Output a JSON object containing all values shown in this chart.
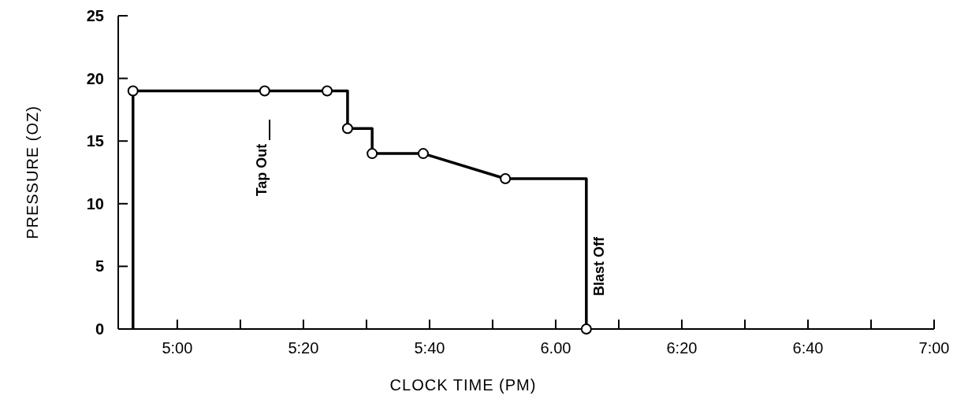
{
  "chart_data": {
    "type": "line",
    "xlabel": "CLOCK TIME (PM)",
    "ylabel": "PRESSURE (OZ)",
    "xlim": [
      4.844,
      7.0
    ],
    "xticks": [
      {
        "value": 5,
        "label": "5:00"
      },
      {
        "value": 5.1667,
        "label": null
      },
      {
        "value": 5.3333,
        "label": "5:20"
      },
      {
        "value": 5.5,
        "label": null
      },
      {
        "value": 5.6667,
        "label": "5:40"
      },
      {
        "value": 5.8333,
        "label": null
      },
      {
        "value": 6,
        "label": "6.00"
      },
      {
        "value": 6.1667,
        "label": null
      },
      {
        "value": 6.3333,
        "label": "6:20"
      },
      {
        "value": 6.5,
        "label": null
      },
      {
        "value": 6.6667,
        "label": "6:40"
      },
      {
        "value": 6.8333,
        "label": null
      },
      {
        "value": 7,
        "label": "7:00"
      }
    ],
    "ylim": [
      0,
      25
    ],
    "yticks": [
      0,
      5,
      10,
      15,
      20,
      25
    ],
    "grid": false,
    "series": [
      {
        "color": "#000000",
        "marker": "none",
        "x": [
          4.883,
          4.883,
          5.45,
          5.45,
          5.515,
          5.515,
          5.65,
          5.867,
          6.081,
          6.081
        ],
        "values": [
          0,
          19,
          19,
          16,
          16,
          14,
          14,
          12,
          12,
          0
        ]
      },
      {
        "type": "scatter",
        "color": "#000000",
        "marker": "circle",
        "x": [
          4.883,
          5.231,
          5.396,
          5.45,
          5.515,
          5.65,
          5.867,
          6.081
        ],
        "values": [
          19,
          19,
          19,
          16,
          14,
          14,
          12,
          0
        ]
      }
    ],
    "annotations": [
      "Tap Out",
      {
        "text": "Blast Off",
        "x": 6.081,
        "y": 5
      }
    ]
  }
}
